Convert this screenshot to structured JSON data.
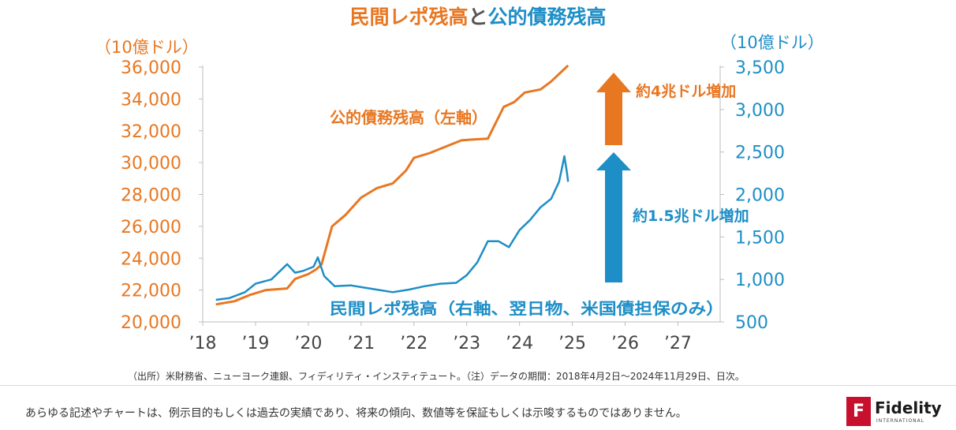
{
  "chart_data": {
    "type": "line",
    "title_parts": [
      "民間レポ残高",
      "と",
      "公的債務残高"
    ],
    "left_unit": "（10億ドル）",
    "right_unit": "（10億ドル）",
    "x_ticks": [
      "’18",
      "’19",
      "’20",
      "’21",
      "’22",
      "’23",
      "’24",
      "’25",
      "’26",
      "’27"
    ],
    "x_range": [
      2018.0,
      2027.8
    ],
    "left_axis": {
      "ticks": [
        "20,000",
        "22,000",
        "24,000",
        "26,000",
        "28,000",
        "30,000",
        "32,000",
        "34,000",
        "36,000"
      ],
      "range": [
        20000,
        36000
      ]
    },
    "right_axis": {
      "ticks": [
        "500",
        "1,000",
        "1,500",
        "2,000",
        "2,500",
        "3,000",
        "3,500"
      ],
      "range": [
        500,
        3500
      ]
    },
    "series": [
      {
        "name": "公的債務残高（左軸）",
        "axis": "left",
        "color": "#E87722",
        "points": [
          [
            2018.25,
            21100
          ],
          [
            2018.6,
            21300
          ],
          [
            2018.9,
            21700
          ],
          [
            2019.2,
            22000
          ],
          [
            2019.6,
            22100
          ],
          [
            2019.75,
            22700
          ],
          [
            2020.0,
            23000
          ],
          [
            2020.15,
            23300
          ],
          [
            2020.25,
            23600
          ],
          [
            2020.45,
            26000
          ],
          [
            2020.7,
            26700
          ],
          [
            2021.0,
            27800
          ],
          [
            2021.3,
            28400
          ],
          [
            2021.6,
            28700
          ],
          [
            2021.85,
            29500
          ],
          [
            2022.0,
            30300
          ],
          [
            2022.3,
            30600
          ],
          [
            2022.6,
            31000
          ],
          [
            2022.9,
            31400
          ],
          [
            2023.1,
            31450
          ],
          [
            2023.4,
            31500
          ],
          [
            2023.55,
            32500
          ],
          [
            2023.7,
            33500
          ],
          [
            2023.9,
            33800
          ],
          [
            2024.1,
            34400
          ],
          [
            2024.4,
            34600
          ],
          [
            2024.6,
            35100
          ],
          [
            2024.92,
            36100
          ]
        ]
      },
      {
        "name": "民間レポ残高（右軸、翌日物、米国債担保のみ）",
        "axis": "right",
        "color": "#1E8EC6",
        "points": [
          [
            2018.25,
            760
          ],
          [
            2018.5,
            780
          ],
          [
            2018.8,
            850
          ],
          [
            2019.0,
            950
          ],
          [
            2019.3,
            1000
          ],
          [
            2019.6,
            1180
          ],
          [
            2019.75,
            1080
          ],
          [
            2019.9,
            1100
          ],
          [
            2020.1,
            1150
          ],
          [
            2020.18,
            1260
          ],
          [
            2020.3,
            1040
          ],
          [
            2020.5,
            920
          ],
          [
            2020.8,
            930
          ],
          [
            2021.0,
            910
          ],
          [
            2021.3,
            880
          ],
          [
            2021.6,
            850
          ],
          [
            2021.9,
            880
          ],
          [
            2022.2,
            920
          ],
          [
            2022.5,
            950
          ],
          [
            2022.8,
            960
          ],
          [
            2023.0,
            1050
          ],
          [
            2023.2,
            1200
          ],
          [
            2023.4,
            1450
          ],
          [
            2023.6,
            1450
          ],
          [
            2023.8,
            1380
          ],
          [
            2024.0,
            1580
          ],
          [
            2024.2,
            1700
          ],
          [
            2024.4,
            1850
          ],
          [
            2024.6,
            1950
          ],
          [
            2024.75,
            2150
          ],
          [
            2024.8,
            2300
          ],
          [
            2024.85,
            2450
          ],
          [
            2024.9,
            2250
          ],
          [
            2024.92,
            2150
          ]
        ]
      }
    ],
    "annotations": {
      "up_left": "約4兆ドル増加",
      "up_right": "約1.5兆ドル増加"
    }
  },
  "source_note": "（出所）米財務省、ニューヨーク連銀、フィディリティ・インスティテュート。（注）データの期間：2018年4月2日～2024年11月29日、日次。",
  "disclaimer": "あらゆる記述やチャートは、例示目的もしくは過去の実績であり、将来の傾向、数値等を保証もしくは示唆するものではありません。",
  "logo": {
    "mark": "F",
    "name": "Fidelity",
    "sub": "INTERNATIONAL"
  },
  "colors": {
    "orange": "#E87722",
    "blue": "#1E8EC6"
  }
}
